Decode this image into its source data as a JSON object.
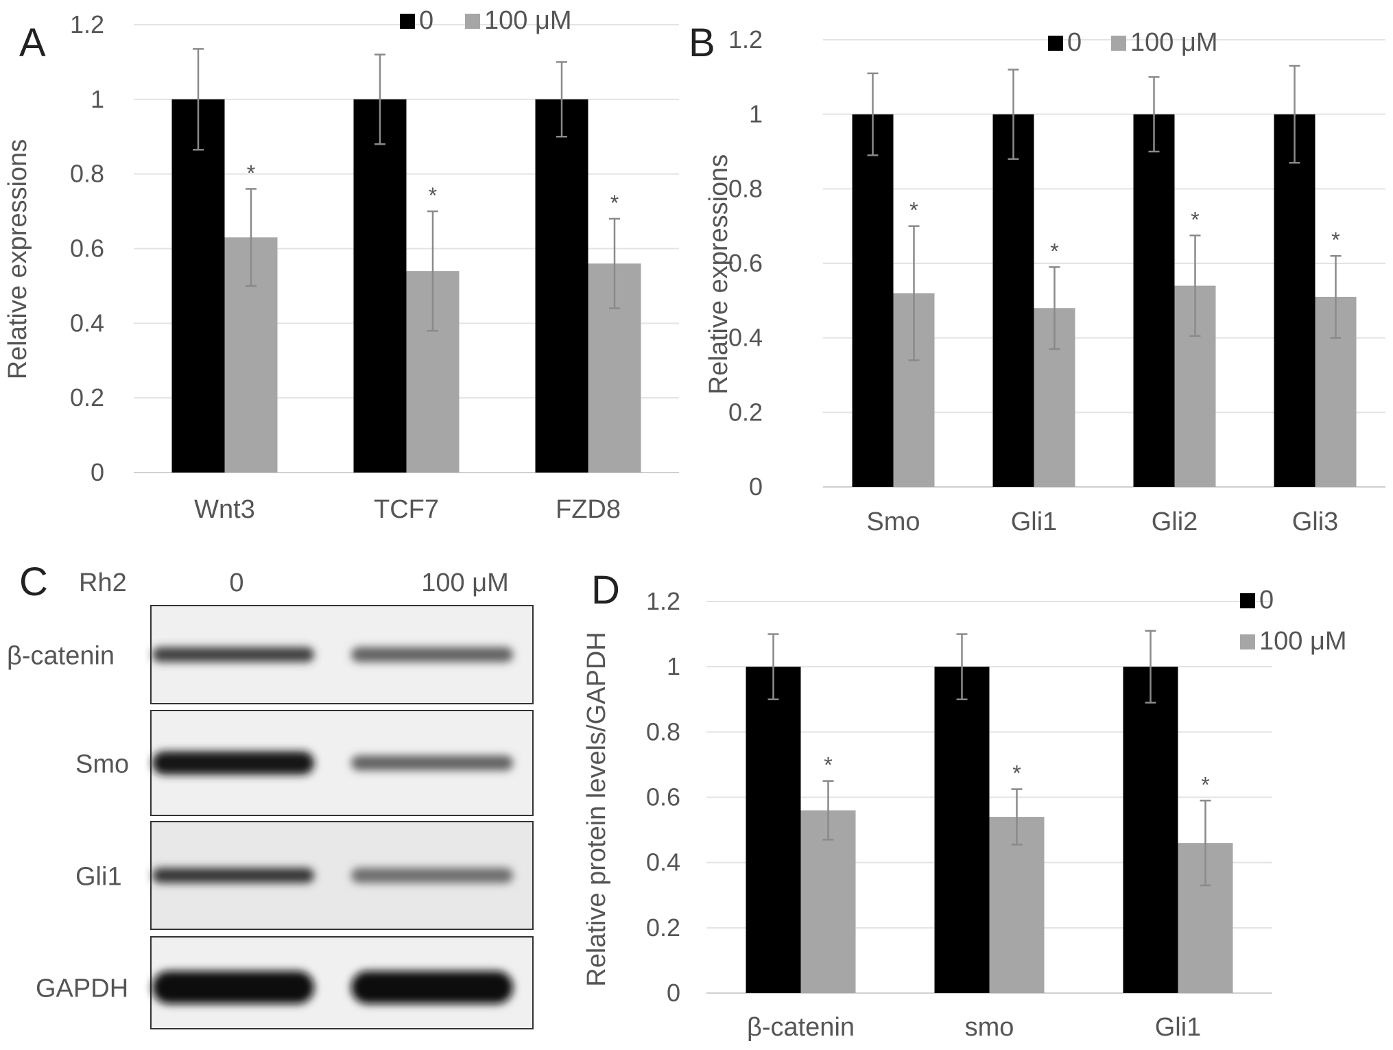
{
  "figure": {
    "panel_c": {
      "letter": "C",
      "row_header": "Rh2",
      "lanes": [
        "0",
        "100 μM"
      ],
      "rows": [
        {
          "label": "β-catenin",
          "lane_intensity": [
            0.75,
            0.6
          ]
        },
        {
          "label": "Smo",
          "lane_intensity": [
            0.95,
            0.6
          ]
        },
        {
          "label": "Gli1",
          "lane_intensity": [
            0.8,
            0.55
          ]
        },
        {
          "label": "GAPDH",
          "lane_intensity": [
            1.0,
            1.0
          ]
        }
      ]
    }
  },
  "chart_data": [
    {
      "panel": "A",
      "type": "bar",
      "ylabel": "Relative expressions",
      "xlabel": "",
      "ylim": [
        0,
        1.2
      ],
      "yticks": [
        "0",
        "0.2",
        "0.4",
        "0.6",
        "0.8",
        "1",
        "1.2"
      ],
      "categories": [
        "Wnt3",
        "TCF7",
        "FZD8"
      ],
      "series": [
        {
          "name": "0",
          "color": "#000000",
          "values": [
            1.0,
            1.0,
            1.0
          ],
          "errors": [
            0.135,
            0.12,
            0.1
          ]
        },
        {
          "name": "100 μM",
          "color": "#a6a6a6",
          "values": [
            0.63,
            0.54,
            0.56
          ],
          "errors": [
            0.13,
            0.16,
            0.12
          ]
        }
      ],
      "significance": [
        "*",
        "*",
        "*"
      ],
      "legend_position": "top",
      "grid": true
    },
    {
      "panel": "B",
      "type": "bar",
      "ylabel": "Relative expressions",
      "xlabel": "",
      "ylim": [
        0,
        1.2
      ],
      "yticks": [
        "0",
        "0.2",
        "0.4",
        "0.6",
        "0.8",
        "1",
        "1.2"
      ],
      "categories": [
        "Smo",
        "Gli1",
        "Gli2",
        "Gli3"
      ],
      "series": [
        {
          "name": "0",
          "color": "#000000",
          "values": [
            1.0,
            1.0,
            1.0,
            1.0
          ],
          "errors": [
            0.11,
            0.12,
            0.1,
            0.13
          ]
        },
        {
          "name": "100 μM",
          "color": "#a6a6a6",
          "values": [
            0.52,
            0.48,
            0.54,
            0.51
          ],
          "errors": [
            0.18,
            0.11,
            0.135,
            0.11
          ]
        }
      ],
      "significance": [
        "*",
        "*",
        "*",
        "*"
      ],
      "legend_position": "top",
      "grid": true
    },
    {
      "panel": "D",
      "type": "bar",
      "ylabel": "Relative protein levels/GAPDH",
      "xlabel": "",
      "ylim": [
        0,
        1.2
      ],
      "yticks": [
        "0",
        "0.2",
        "0.4",
        "0.6",
        "0.8",
        "1",
        "1.2"
      ],
      "categories": [
        "β-catenin",
        "smo",
        "Gli1"
      ],
      "series": [
        {
          "name": "0",
          "color": "#000000",
          "values": [
            1.0,
            1.0,
            1.0
          ],
          "errors": [
            0.1,
            0.1,
            0.11
          ]
        },
        {
          "name": "100 μM",
          "color": "#a6a6a6",
          "values": [
            0.56,
            0.54,
            0.46
          ],
          "errors": [
            0.09,
            0.085,
            0.13
          ]
        }
      ],
      "significance": [
        "*",
        "*",
        "*"
      ],
      "legend_position": "top-right",
      "grid": true
    }
  ]
}
